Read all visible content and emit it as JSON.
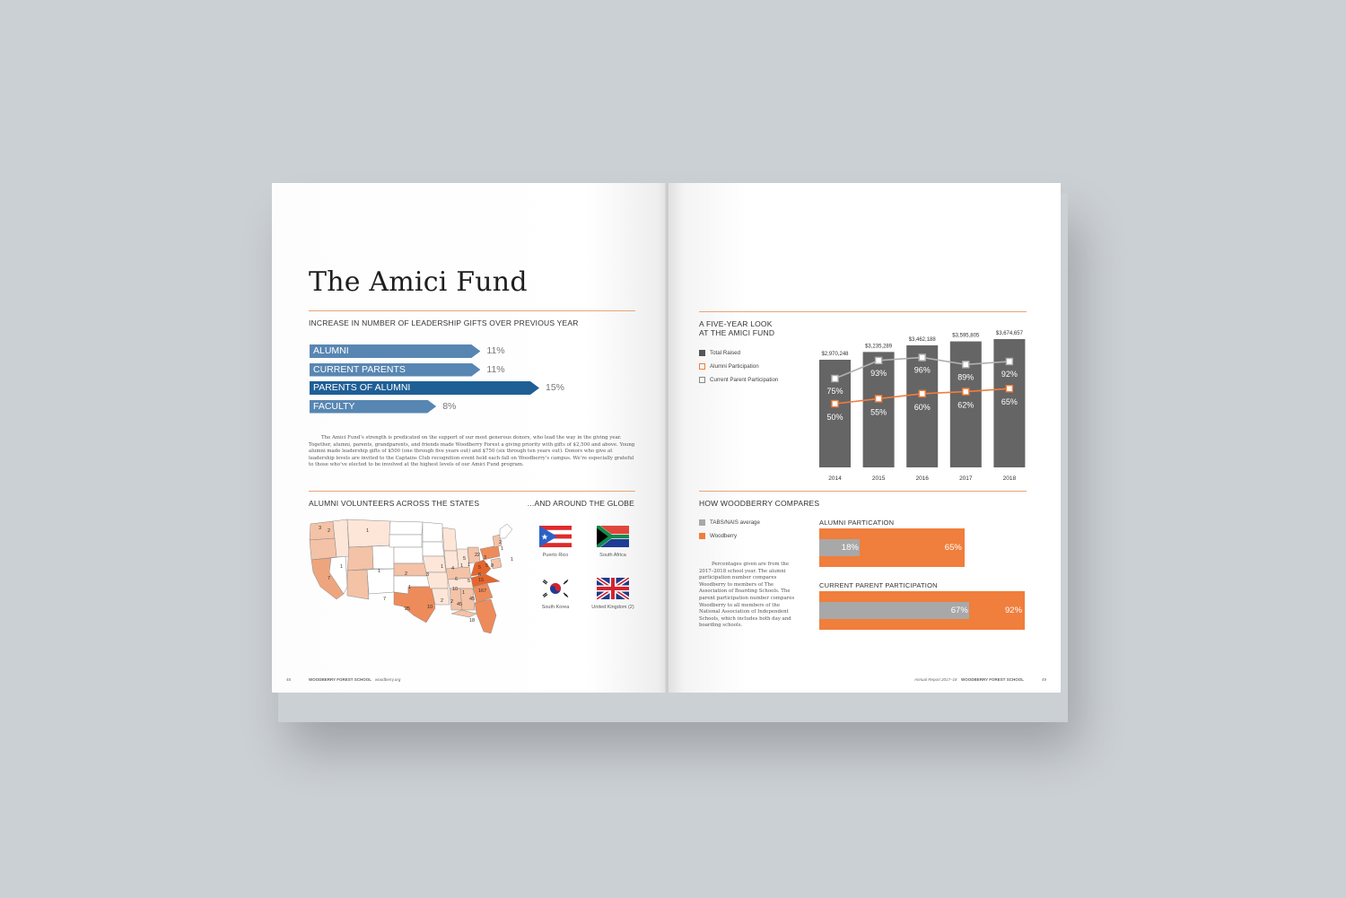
{
  "left_page": {
    "title": "The Amici Fund",
    "gifts_heading": "INCREASE IN NUMBER OF LEADERSHIP GIFTS OVER PREVIOUS YEAR",
    "body_paragraph": "The Amici Fund’s strength is predicated on the support of our most generous donors, who lead the way in the giving year. Together, alumni, parents, grandparents, and friends made Woodberry Forest a giving priority with gifts of $2,500 and above. Young alumni made leadership gifts of $500 (one through five years out) and $750 (six through ten years out). Donors who give at leadership levels are invited to the Captains Club recognition event held each fall on Woodberry’s campus. We’re especially grateful to those who’ve elected to be involved at the highest levels of our Amici Fund program.",
    "volunteers_heading": "ALUMNI VOLUNTEERS ACROSS THE STATES",
    "globe_heading": "...AND AROUND THE GLOBE",
    "flags": [
      {
        "label": "Puerto Rico",
        "icon": "puerto-rico-flag-icon"
      },
      {
        "label": "South Africa",
        "icon": "south-africa-flag-icon"
      },
      {
        "label": "South Korea",
        "icon": "south-korea-flag-icon"
      },
      {
        "label": "United Kingdom (2)",
        "icon": "united-kingdom-flag-icon"
      }
    ],
    "map_numbers": [
      "3",
      "2",
      "1",
      "1",
      "7",
      "1",
      "7",
      "2",
      "3",
      "1",
      "1",
      "4",
      "1",
      "5",
      "22",
      "3",
      "5",
      "5",
      "8",
      "1",
      "6",
      "5",
      "6",
      "10",
      "15",
      "167",
      "2",
      "2",
      "45",
      "1",
      "25",
      "10",
      "45",
      "18",
      "1",
      "2",
      "1"
    ],
    "footer_page": "48",
    "footer_school": "WOODBERRY FOREST SCHOOL",
    "footer_url": "woodberry.org"
  },
  "right_page": {
    "five_year_heading_1": "A FIVE-YEAR LOOK",
    "five_year_heading_2": "AT THE AMICI FUND",
    "legend_total": "Total Raised",
    "legend_alumni": "Alumni Participation",
    "legend_parent": "Current Parent Participation",
    "compare_heading": "HOW WOODBERRY COMPARES",
    "compare_legend_tabs": "TABS/NAIS average",
    "compare_legend_wfs": "Woodberry",
    "compare_note": "Percentages given are from the 2017–2018 school year. The alumni participation number compares Woodberry to members of The Association of Boarding Schools. The parent participation number compares Woodberry to all members of the National Association of Independent Schools, which includes both day and boarding schools.",
    "alumni_part_label": "ALUMNI PARTICATION",
    "parent_part_label": "CURRENT PARENT PARTICIPATION",
    "footer_report": "Annual Report 2017–18",
    "footer_school": "WOODBERRY FOREST SCHOOL",
    "footer_page": "49"
  },
  "colors": {
    "bar_light_blue": "#5886b2",
    "bar_dark_blue": "#1e5f96",
    "orange": "#f07e3c",
    "dark_grey": "#656565",
    "light_grey": "#a8a8a8"
  },
  "chart_data": [
    {
      "type": "bar",
      "orientation": "horizontal",
      "categories": [
        "ALUMNI",
        "CURRENT PARENTS",
        "PARENTS OF ALUMNI",
        "FACULTY"
      ],
      "values": [
        11,
        11,
        15,
        8
      ],
      "value_labels": [
        "11%",
        "11%",
        "15%",
        "8%"
      ],
      "title": "INCREASE IN NUMBER OF LEADERSHIP GIFTS OVER PREVIOUS YEAR",
      "unit": "%"
    },
    {
      "type": "bar",
      "title": "A FIVE-YEAR LOOK AT THE AMICI FUND",
      "categories": [
        "2014",
        "2015",
        "2016",
        "2017",
        "2018"
      ],
      "series": [
        {
          "name": "Total Raised",
          "type": "bar",
          "values": [
            2970248,
            3235289,
            3462188,
            3595805,
            3674657
          ],
          "labels": [
            "$2,970,248",
            "$3,235,289",
            "$3,462,188",
            "$3,595,805",
            "$3,674,657"
          ]
        },
        {
          "name": "Alumni Participation",
          "type": "line",
          "values": [
            50,
            55,
            60,
            62,
            65
          ],
          "labels": [
            "50%",
            "55%",
            "60%",
            "62%",
            "65%"
          ]
        },
        {
          "name": "Current Parent Participation",
          "type": "line",
          "values": [
            75,
            93,
            96,
            89,
            92
          ],
          "labels": [
            "75%",
            "93%",
            "96%",
            "89%",
            "92%"
          ]
        }
      ],
      "legend": "top-left"
    },
    {
      "type": "bar",
      "orientation": "horizontal",
      "title": "HOW WOODBERRY COMPARES",
      "groups": [
        {
          "label": "ALUMNI PARTICATION",
          "tabs_nais": 18,
          "woodberry": 65,
          "labels": [
            "18%",
            "65%"
          ]
        },
        {
          "label": "CURRENT PARENT PARTICIPATION",
          "tabs_nais": 67,
          "woodberry": 92,
          "labels": [
            "67%",
            "92%"
          ]
        }
      ],
      "series_names": [
        "TABS/NAIS average",
        "Woodberry"
      ]
    }
  ]
}
